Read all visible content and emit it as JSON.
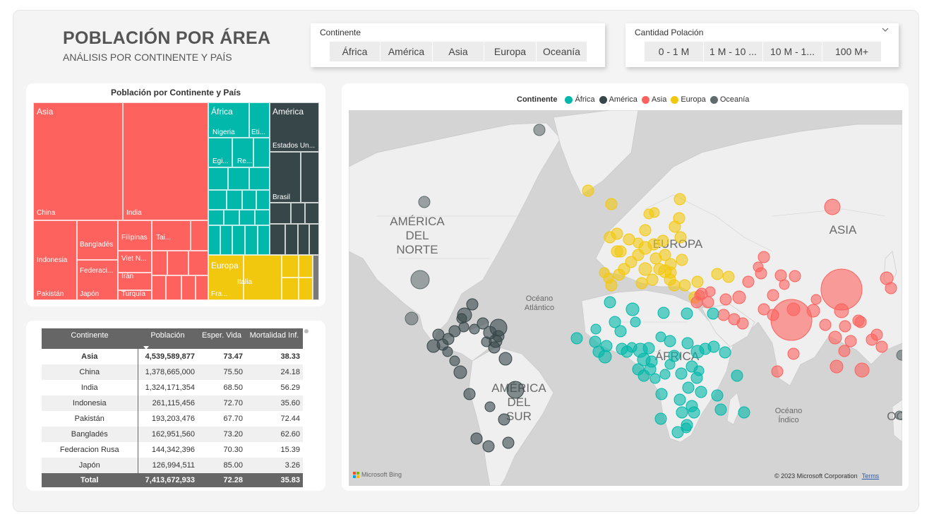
{
  "header": {
    "title": "POBLACIÓN POR ÁREA",
    "subtitle": "ANÁLISIS POR CONTINENTE Y PAÍS"
  },
  "slicer_continent": {
    "title": "Continente",
    "options": [
      "África",
      "América",
      "Asia",
      "Europa",
      "Oceanía"
    ]
  },
  "slicer_population": {
    "title": "Cantidad Polación",
    "options": [
      "0 - 1 M",
      "1 M - 10 ...",
      "10 M - 1...",
      "100 M+"
    ]
  },
  "treemap": {
    "title": "Población por Continente y País",
    "colors": {
      "Asia": "#fd625e",
      "África": "#01b8aa",
      "América": "#374649",
      "Europa": "#f2c80f"
    },
    "groups": [
      {
        "name": "Asia",
        "items": [
          "China",
          "India",
          "Indonesia",
          "Bangladés",
          "Pakistán",
          "Japón",
          "Filipinas",
          "Tai...",
          "Viet N...",
          "Irán",
          "Federaci...",
          "Turquía"
        ]
      },
      {
        "name": "África",
        "items": [
          "Nigeria",
          "Eti...",
          "Egi...",
          "Re..."
        ]
      },
      {
        "name": "América",
        "items": [
          "Estados Un...",
          "Brasil"
        ]
      },
      {
        "name": "Europa",
        "items": [
          "Italia",
          "Fra..."
        ]
      }
    ]
  },
  "table": {
    "columns": [
      "Continente",
      "Población",
      "Esper. Vida",
      "Mortalidad Inf."
    ],
    "rows": [
      {
        "name": "Asia",
        "pop": "4,539,589,877",
        "life": "73.47",
        "mort": "38.33",
        "bold": true
      },
      {
        "name": "China",
        "pop": "1,378,665,000",
        "life": "75.50",
        "mort": "24.18"
      },
      {
        "name": "India",
        "pop": "1,324,171,354",
        "life": "68.50",
        "mort": "56.29"
      },
      {
        "name": "Indonesia",
        "pop": "261,115,456",
        "life": "72.70",
        "mort": "35.60"
      },
      {
        "name": "Pakistán",
        "pop": "193,203,476",
        "life": "67.70",
        "mort": "72.44"
      },
      {
        "name": "Bangladés",
        "pop": "162,951,560",
        "life": "73.20",
        "mort": "62.60"
      },
      {
        "name": "Federacion Rusa",
        "pop": "144,342,396",
        "life": "70.30",
        "mort": "15.39"
      },
      {
        "name": "Japón",
        "pop": "126,994,511",
        "life": "85.00",
        "mort": "3.26"
      }
    ],
    "total": {
      "name": "Total",
      "pop": "7,413,672,933",
      "life": "72.28",
      "mort": "35.83"
    }
  },
  "map": {
    "legend_title": "Continente",
    "legend": [
      {
        "name": "África",
        "color": "#01b8aa"
      },
      {
        "name": "América",
        "color": "#374649"
      },
      {
        "name": "Asia",
        "color": "#fd625e"
      },
      {
        "name": "Europa",
        "color": "#f2c80f"
      },
      {
        "name": "Oceanía",
        "color": "#5f6b6d"
      }
    ],
    "labels": {
      "na": [
        "AMÉRICA",
        "DEL",
        "NORTE"
      ],
      "sa": [
        "AMÉRICA",
        "DEL",
        "SUR"
      ],
      "eu": "EUROPA",
      "as": "ASIA",
      "af": "ÁFRICA",
      "oc": "OC",
      "atl": [
        "Océano",
        "Atlántico"
      ],
      "ind": [
        "Océano",
        "Índico"
      ]
    },
    "bing": "Microsoft Bing",
    "copyright": "© 2023 Microsoft Corporation",
    "terms": "Terms"
  }
}
